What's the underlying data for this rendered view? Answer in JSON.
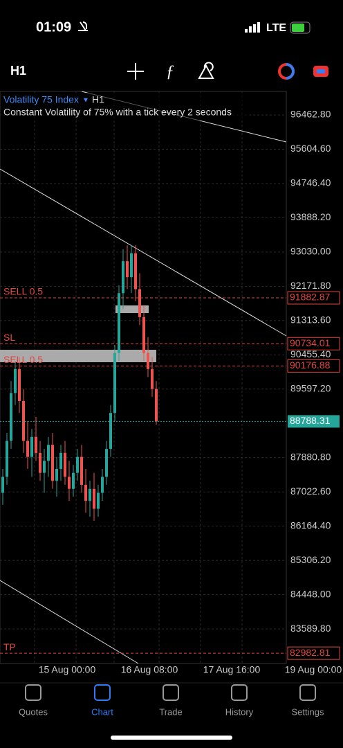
{
  "status_bar": {
    "time": "01:09",
    "network": "LTE"
  },
  "toolbar": {
    "timeframe": "H1"
  },
  "chart_data": {
    "type": "candlestick",
    "symbol": "Volatility 75 Index",
    "timeframe": "H1",
    "subtitle": "Constant Volatility of 75% with a tick every 2 seconds",
    "ylim": [
      82725,
      97052
    ],
    "yticks": [
      {
        "value": 96462.8,
        "label": "96462.80"
      },
      {
        "value": 95604.6,
        "label": "95604.60"
      },
      {
        "value": 94746.4,
        "label": "94746.40"
      },
      {
        "value": 93888.2,
        "label": "93888.20"
      },
      {
        "value": 93030,
        "label": "93030.00"
      },
      {
        "value": 92171.8,
        "label": "92171.80"
      },
      {
        "value": 91313.6,
        "label": "91313.60"
      },
      {
        "value": 90455.4,
        "label": "90455.40"
      },
      {
        "value": 89597.2,
        "label": "89597.20"
      },
      {
        "value": 87880.8,
        "label": "87880.80"
      },
      {
        "value": 87022.6,
        "label": "87022.60"
      },
      {
        "value": 86164.4,
        "label": "86164.40"
      },
      {
        "value": 85306.2,
        "label": "85306.20"
      },
      {
        "value": 84448,
        "label": "84448.00"
      },
      {
        "value": 83589.8,
        "label": "83589.80"
      }
    ],
    "xlabels": [
      "15 Aug 00:00",
      "16 Aug 08:00",
      "17 Aug 16:00",
      "19 Aug 00:00"
    ],
    "levels": [
      {
        "name": "SELL 0.5",
        "price": 91882.87
      },
      {
        "name": "SL",
        "price": 90734.01
      },
      {
        "name": "SELL 0.5",
        "price": 90176.88
      },
      {
        "name": "TP",
        "price": 82982.81
      }
    ],
    "current_price": 88788.31,
    "up_color": "#26a69a",
    "down_color": "#ef5350",
    "level_color": "#e0473f",
    "price_color": "#26a69a",
    "candles": [
      [
        87000,
        87600,
        86700,
        87400
      ],
      [
        87400,
        88500,
        87200,
        88300
      ],
      [
        88300,
        89800,
        88100,
        89500
      ],
      [
        89500,
        90300,
        89200,
        90100
      ],
      [
        90100,
        90400,
        89000,
        89300
      ],
      [
        89300,
        89600,
        88000,
        88300
      ],
      [
        88300,
        88800,
        87600,
        87900
      ],
      [
        87900,
        88600,
        87400,
        88400
      ],
      [
        88400,
        88900,
        87800,
        88000
      ],
      [
        88000,
        88300,
        87300,
        87500
      ],
      [
        87500,
        88100,
        87000,
        87800
      ],
      [
        87800,
        88400,
        87400,
        88200
      ],
      [
        88200,
        88500,
        87100,
        87300
      ],
      [
        87300,
        87900,
        86900,
        87600
      ],
      [
        87600,
        88200,
        87300,
        88000
      ],
      [
        88000,
        88300,
        87200,
        87400
      ],
      [
        87400,
        87800,
        86800,
        87100
      ],
      [
        87100,
        87700,
        86900,
        87500
      ],
      [
        87500,
        88100,
        87300,
        87900
      ],
      [
        87900,
        88200,
        87000,
        87200
      ],
      [
        87200,
        87600,
        86500,
        86800
      ],
      [
        86800,
        87300,
        86400,
        87100
      ],
      [
        87100,
        87500,
        86300,
        86600
      ],
      [
        86600,
        87200,
        86400,
        87000
      ],
      [
        87000,
        87600,
        86800,
        87400
      ],
      [
        87400,
        88300,
        87200,
        88100
      ],
      [
        88100,
        89200,
        87900,
        89000
      ],
      [
        89000,
        90700,
        88800,
        90500
      ],
      [
        90500,
        92200,
        90300,
        92000
      ],
      [
        92000,
        93100,
        91600,
        92800
      ],
      [
        92800,
        93200,
        92100,
        92400
      ],
      [
        92400,
        93200,
        92000,
        93000
      ],
      [
        93000,
        93200,
        91800,
        92100
      ],
      [
        92100,
        92500,
        91200,
        91400
      ],
      [
        91400,
        91700,
        90300,
        90500
      ],
      [
        90500,
        90900,
        89900,
        90100
      ],
      [
        90100,
        90400,
        89400,
        89600
      ],
      [
        89600,
        89800,
        88700,
        88788.31
      ]
    ]
  },
  "tab_bar": {
    "tabs": [
      "Quotes",
      "Chart",
      "Trade",
      "History",
      "Settings"
    ],
    "active": 1
  }
}
